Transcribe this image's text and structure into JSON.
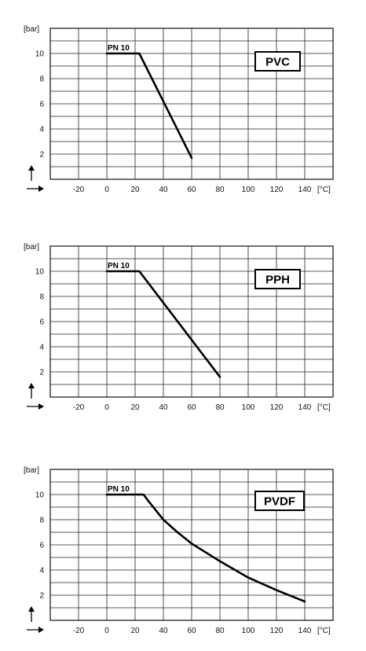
{
  "chart_data": [
    {
      "type": "line",
      "title": "PVC",
      "xlabel": "[°C]",
      "ylabel": "[bar]",
      "xlim": [
        -40,
        160
      ],
      "ylim": [
        0,
        12
      ],
      "x_ticks": [
        -20,
        0,
        20,
        40,
        60,
        80,
        100,
        120,
        140
      ],
      "y_ticks": [
        2,
        4,
        6,
        8,
        10
      ],
      "grid": true,
      "annotation": "PN 10",
      "series": [
        {
          "x": [
            0,
            23,
            60
          ],
          "y": [
            10,
            10,
            1.7
          ]
        }
      ]
    },
    {
      "type": "line",
      "title": "PPH",
      "xlabel": "[°C]",
      "ylabel": "[bar]",
      "xlim": [
        -40,
        160
      ],
      "ylim": [
        0,
        12
      ],
      "x_ticks": [
        -20,
        0,
        20,
        40,
        60,
        80,
        100,
        120,
        140
      ],
      "y_ticks": [
        2,
        4,
        6,
        8,
        10
      ],
      "grid": true,
      "annotation": "PN 10",
      "series": [
        {
          "x": [
            0,
            23,
            80
          ],
          "y": [
            10,
            10,
            1.6
          ]
        }
      ]
    },
    {
      "type": "line",
      "title": "PVDF",
      "xlabel": "[°C]",
      "ylabel": "[bar]",
      "xlim": [
        -40,
        160
      ],
      "ylim": [
        0,
        12
      ],
      "x_ticks": [
        -20,
        0,
        20,
        40,
        60,
        80,
        100,
        120,
        140
      ],
      "y_ticks": [
        2,
        4,
        6,
        8,
        10
      ],
      "grid": true,
      "annotation": "PN 10",
      "series": [
        {
          "x": [
            0,
            26,
            30,
            40,
            50,
            60,
            80,
            100,
            120,
            140
          ],
          "y": [
            10,
            10,
            9.4,
            8.0,
            7.0,
            6.1,
            4.7,
            3.4,
            2.4,
            1.5
          ]
        }
      ]
    }
  ]
}
